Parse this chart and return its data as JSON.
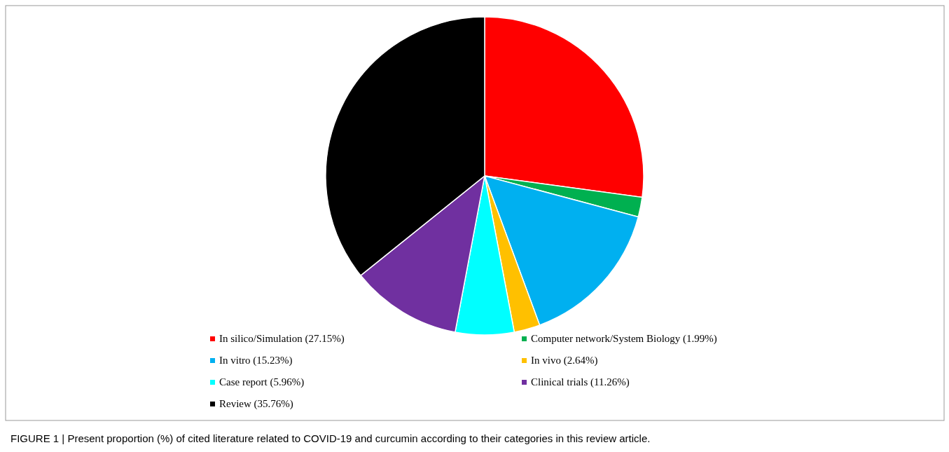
{
  "chart_data": {
    "type": "pie",
    "categories": [
      "In silico/Simulation (27.15%)",
      "Computer network/System Biology (1.99%)",
      "In vitro (15.23%)",
      "In vivo (2.64%)",
      "Case report (5.96%)",
      "Clinical trials (11.26%)",
      "Review (35.76%)"
    ],
    "values": [
      27.15,
      1.99,
      15.23,
      2.64,
      5.96,
      11.26,
      35.76
    ],
    "colors": [
      "#ff0000",
      "#00b050",
      "#00b0f0",
      "#ffc000",
      "#00ffff",
      "#7030a0",
      "#000000"
    ],
    "legend": "bottom",
    "annotations": [
      "FIGURE 1 | Present proportion (%) of cited literature related to COVID-19 and curcumin according to their categories in this review article."
    ]
  }
}
